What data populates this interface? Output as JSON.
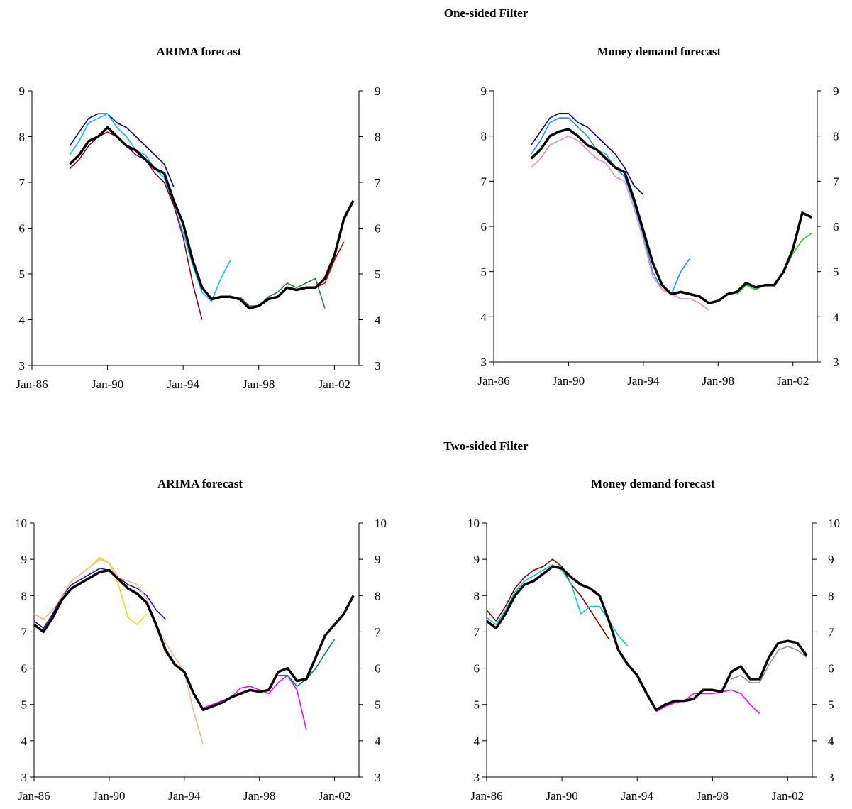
{
  "section_titles": [
    "One-sided Filter",
    "Two-sided Filter"
  ],
  "chart_data": [
    {
      "type": "line",
      "title": "ARIMA forecast",
      "x": [
        1988,
        1988.5,
        1989,
        1989.5,
        1990,
        1990.5,
        1991,
        1991.5,
        1992,
        1992.5,
        1993,
        1993.5,
        1994,
        1994.5,
        1995,
        1995.5,
        1996,
        1996.5,
        1997,
        1997.5,
        1998,
        1998.5,
        1999,
        1999.5,
        2000,
        2000.5,
        2001,
        2001.5,
        2002,
        2002.5,
        2003
      ],
      "xlim": [
        1986,
        2003.3
      ],
      "xticks": [
        {
          "value": 1986,
          "label": "Jan-86"
        },
        {
          "value": 1990,
          "label": "Jan-90"
        },
        {
          "value": 1994,
          "label": "Jan-94"
        },
        {
          "value": 1998,
          "label": "Jan-98"
        },
        {
          "value": 2002,
          "label": "Jan-02"
        }
      ],
      "ylim": [
        3,
        9
      ],
      "yticks": [
        3,
        4,
        5,
        6,
        7,
        8,
        9
      ],
      "series": [
        {
          "color": "#00008b",
          "values": [
            7.8,
            8.1,
            8.4,
            8.5,
            8.5,
            8.3,
            8.2,
            8.0,
            7.8,
            7.6,
            7.4,
            6.9,
            null,
            null,
            null,
            null,
            null,
            null,
            null,
            null,
            null,
            null,
            null,
            null,
            null,
            null,
            null,
            null,
            null,
            null,
            null
          ]
        },
        {
          "color": "#00bfff",
          "values": [
            7.6,
            7.9,
            8.3,
            8.4,
            8.5,
            8.2,
            8.0,
            7.7,
            7.6,
            7.3,
            7.1,
            6.5,
            5.9,
            5.2,
            4.6,
            4.4,
            4.9,
            5.3,
            null,
            null,
            null,
            null,
            null,
            null,
            null,
            null,
            null,
            null,
            null,
            null,
            null
          ]
        },
        {
          "color": "#8b0030",
          "values": [
            7.3,
            7.5,
            7.8,
            8.0,
            8.1,
            8.0,
            7.8,
            7.6,
            7.5,
            7.2,
            7.0,
            6.5,
            5.8,
            4.8,
            4.0,
            null,
            null,
            null,
            null,
            null,
            null,
            null,
            null,
            null,
            null,
            null,
            null,
            null,
            null,
            null,
            null
          ]
        },
        {
          "color": "#2e7d32",
          "values": [
            null,
            null,
            null,
            null,
            null,
            null,
            null,
            null,
            null,
            null,
            null,
            null,
            null,
            null,
            null,
            null,
            null,
            null,
            4.5,
            4.3,
            4.3,
            4.5,
            4.6,
            4.8,
            4.7,
            4.8,
            4.9,
            4.25,
            null,
            null,
            null
          ]
        },
        {
          "color": "#e00000",
          "values": [
            null,
            null,
            null,
            null,
            null,
            null,
            null,
            null,
            null,
            null,
            null,
            null,
            null,
            null,
            null,
            null,
            null,
            null,
            null,
            null,
            null,
            null,
            null,
            null,
            4.65,
            4.7,
            4.7,
            4.8,
            5.3,
            5.7,
            null
          ]
        },
        {
          "color": "#000000",
          "values": [
            7.4,
            7.6,
            7.9,
            8.0,
            8.2,
            8.0,
            7.8,
            7.7,
            7.5,
            7.3,
            7.2,
            6.6,
            6.1,
            5.3,
            4.7,
            4.45,
            4.5,
            4.5,
            4.45,
            4.25,
            4.3,
            4.45,
            4.5,
            4.7,
            4.65,
            4.7,
            4.7,
            4.9,
            5.4,
            6.2,
            6.6
          ]
        }
      ]
    },
    {
      "type": "line",
      "title": "Money demand forecast",
      "x": [
        1988,
        1988.5,
        1989,
        1989.5,
        1990,
        1990.5,
        1991,
        1991.5,
        1992,
        1992.5,
        1993,
        1993.5,
        1994,
        1994.5,
        1995,
        1995.5,
        1996,
        1996.5,
        1997,
        1997.5,
        1998,
        1998.5,
        1999,
        1999.5,
        2000,
        2000.5,
        2001,
        2001.5,
        2002,
        2002.5,
        2003
      ],
      "xlim": [
        1986,
        2003.3
      ],
      "xticks": [
        {
          "value": 1986,
          "label": "Jan-86"
        },
        {
          "value": 1990,
          "label": "Jan-90"
        },
        {
          "value": 1994,
          "label": "Jan-94"
        },
        {
          "value": 1998,
          "label": "Jan-98"
        },
        {
          "value": 2002,
          "label": "Jan-02"
        }
      ],
      "ylim": [
        3,
        9
      ],
      "yticks": [
        3,
        4,
        5,
        6,
        7,
        8,
        9
      ],
      "series": [
        {
          "color": "#00008b",
          "values": [
            7.8,
            8.1,
            8.4,
            8.5,
            8.5,
            8.3,
            8.2,
            8.0,
            7.8,
            7.6,
            7.3,
            6.9,
            6.7,
            null,
            null,
            null,
            null,
            null,
            null,
            null,
            null,
            null,
            null,
            null,
            null,
            null,
            null,
            null,
            null,
            null,
            null
          ]
        },
        {
          "color": "#1e90ff",
          "values": [
            7.6,
            7.9,
            8.3,
            8.4,
            8.4,
            8.2,
            8.0,
            7.7,
            7.6,
            7.3,
            7.1,
            6.5,
            5.8,
            5.0,
            4.6,
            4.5,
            5.0,
            5.3,
            null,
            null,
            null,
            null,
            null,
            null,
            null,
            null,
            null,
            null,
            null,
            null,
            null
          ]
        },
        {
          "color": "#e78fc0",
          "values": [
            7.3,
            7.5,
            7.8,
            7.9,
            8.0,
            7.9,
            7.7,
            7.5,
            7.4,
            7.1,
            7.0,
            6.4,
            5.7,
            4.9,
            4.6,
            4.5,
            4.4,
            4.4,
            4.3,
            4.15,
            null,
            null,
            null,
            null,
            null,
            null,
            null,
            null,
            null,
            null,
            null
          ]
        },
        {
          "color": "#22cc22",
          "values": [
            null,
            null,
            null,
            null,
            null,
            null,
            null,
            null,
            null,
            null,
            null,
            null,
            null,
            null,
            null,
            null,
            null,
            null,
            null,
            null,
            null,
            null,
            4.5,
            4.7,
            4.6,
            4.7,
            4.7,
            5.0,
            5.4,
            5.7,
            5.85
          ]
        },
        {
          "color": "#000000",
          "values": [
            7.5,
            7.7,
            8.0,
            8.1,
            8.15,
            8.0,
            7.8,
            7.7,
            7.5,
            7.3,
            7.2,
            6.6,
            5.9,
            5.2,
            4.7,
            4.5,
            4.55,
            4.5,
            4.45,
            4.3,
            4.35,
            4.5,
            4.55,
            4.75,
            4.65,
            4.7,
            4.7,
            5.0,
            5.5,
            6.3,
            6.2
          ]
        }
      ]
    },
    {
      "type": "line",
      "title": "ARIMA forecast",
      "x": [
        1986,
        1986.5,
        1987,
        1987.5,
        1988,
        1988.5,
        1989,
        1989.5,
        1990,
        1990.5,
        1991,
        1991.5,
        1992,
        1992.5,
        1993,
        1993.5,
        1994,
        1994.5,
        1995,
        1995.5,
        1996,
        1996.5,
        1997,
        1997.5,
        1998,
        1998.5,
        1999,
        1999.5,
        2000,
        2000.5,
        2001,
        2001.5,
        2002,
        2002.5,
        2003
      ],
      "xlim": [
        1986,
        2003.3
      ],
      "xticks": [
        {
          "value": 1986,
          "label": "Jan-86"
        },
        {
          "value": 1990,
          "label": "Jan-90"
        },
        {
          "value": 1994,
          "label": "Jan-94"
        },
        {
          "value": 1998,
          "label": "Jan-98"
        },
        {
          "value": 2002,
          "label": "Jan-02"
        }
      ],
      "ylim": [
        3,
        10
      ],
      "yticks": [
        3,
        4,
        5,
        6,
        7,
        8,
        9,
        10
      ],
      "series": [
        {
          "color": "#ffd700",
          "values": [
            7.3,
            7.1,
            7.5,
            8.0,
            8.4,
            8.6,
            8.8,
            9.05,
            8.9,
            8.3,
            7.4,
            7.2,
            7.5,
            null,
            null,
            null,
            null,
            null,
            null,
            null,
            null,
            null,
            null,
            null,
            null,
            null,
            null,
            null,
            null,
            null,
            null,
            null,
            null,
            null,
            null
          ]
        },
        {
          "color": "#1a1aa0",
          "values": [
            7.3,
            7.1,
            7.5,
            8.0,
            8.3,
            8.45,
            8.6,
            8.75,
            8.7,
            8.5,
            8.3,
            8.2,
            8.0,
            7.6,
            7.35,
            null,
            null,
            null,
            null,
            null,
            null,
            null,
            null,
            null,
            null,
            null,
            null,
            null,
            null,
            null,
            null,
            null,
            null,
            null,
            null
          ]
        },
        {
          "color": "#f4b890",
          "values": [
            7.5,
            7.35,
            7.6,
            8.0,
            8.4,
            8.6,
            8.8,
            9.0,
            8.9,
            8.5,
            8.4,
            8.3,
            7.9,
            7.2,
            6.7,
            6.3,
            5.9,
            4.8,
            3.9,
            null,
            null,
            null,
            null,
            null,
            null,
            null,
            null,
            null,
            null,
            null,
            null,
            null,
            null,
            null,
            null
          ]
        },
        {
          "color": "#ff00ff",
          "values": [
            null,
            null,
            null,
            null,
            null,
            null,
            null,
            null,
            null,
            null,
            null,
            null,
            null,
            null,
            null,
            null,
            null,
            null,
            4.9,
            5.0,
            5.1,
            5.2,
            5.45,
            5.5,
            5.4,
            5.3,
            5.6,
            5.8,
            5.4,
            4.3,
            null,
            null,
            null,
            null,
            null
          ]
        },
        {
          "color": "#008080",
          "values": [
            null,
            null,
            null,
            null,
            null,
            null,
            null,
            null,
            null,
            null,
            null,
            null,
            null,
            null,
            null,
            null,
            null,
            null,
            null,
            null,
            null,
            null,
            null,
            null,
            null,
            null,
            5.8,
            5.8,
            5.5,
            5.7,
            6.0,
            6.4,
            6.8,
            null,
            null
          ]
        },
        {
          "color": "#000000",
          "values": [
            7.2,
            7.0,
            7.4,
            7.9,
            8.2,
            8.35,
            8.5,
            8.65,
            8.7,
            8.45,
            8.2,
            8.05,
            7.8,
            7.2,
            6.5,
            6.1,
            5.9,
            5.3,
            4.85,
            4.95,
            5.05,
            5.2,
            5.3,
            5.4,
            5.35,
            5.4,
            5.9,
            6.0,
            5.65,
            5.7,
            6.3,
            6.9,
            7.2,
            7.5,
            8.0
          ]
        }
      ]
    },
    {
      "type": "line",
      "title": "Money demand forecast",
      "x": [
        1986,
        1986.5,
        1987,
        1987.5,
        1988,
        1988.5,
        1989,
        1989.5,
        1990,
        1990.5,
        1991,
        1991.5,
        1992,
        1992.5,
        1993,
        1993.5,
        1994,
        1994.5,
        1995,
        1995.5,
        1996,
        1996.5,
        1997,
        1997.5,
        1998,
        1998.5,
        1999,
        1999.5,
        2000,
        2000.5,
        2001,
        2001.5,
        2002,
        2002.5,
        2003
      ],
      "xlim": [
        1986,
        2003.3
      ],
      "xticks": [
        {
          "value": 1986,
          "label": "Jan-86"
        },
        {
          "value": 1990,
          "label": "Jan-90"
        },
        {
          "value": 1994,
          "label": "Jan-94"
        },
        {
          "value": 1998,
          "label": "Jan-98"
        },
        {
          "value": 2002,
          "label": "Jan-02"
        }
      ],
      "ylim": [
        3,
        10
      ],
      "yticks": [
        3,
        4,
        5,
        6,
        7,
        8,
        9,
        10
      ],
      "series": [
        {
          "color": "#8b0000",
          "values": [
            7.6,
            7.3,
            7.7,
            8.2,
            8.5,
            8.7,
            8.8,
            9.0,
            8.8,
            8.3,
            8.0,
            7.6,
            7.2,
            6.8,
            null,
            null,
            null,
            null,
            null,
            null,
            null,
            null,
            null,
            null,
            null,
            null,
            null,
            null,
            null,
            null,
            null,
            null,
            null,
            null,
            null
          ]
        },
        {
          "color": "#00ced1",
          "values": [
            7.4,
            7.2,
            7.6,
            8.1,
            8.4,
            8.55,
            8.7,
            8.85,
            8.7,
            8.3,
            7.5,
            7.7,
            7.7,
            7.3,
            6.9,
            6.6,
            null,
            null,
            null,
            null,
            null,
            null,
            null,
            null,
            null,
            null,
            null,
            null,
            null,
            null,
            null,
            null,
            null,
            null,
            null
          ]
        },
        {
          "color": "#ff00ff",
          "values": [
            null,
            null,
            null,
            null,
            null,
            null,
            null,
            null,
            null,
            null,
            null,
            null,
            null,
            null,
            null,
            null,
            null,
            null,
            4.8,
            4.95,
            5.05,
            5.1,
            5.3,
            5.3,
            5.3,
            5.35,
            5.4,
            5.3,
            5.0,
            4.75,
            null,
            null,
            null,
            null,
            null
          ]
        },
        {
          "color": "#909090",
          "values": [
            null,
            null,
            null,
            null,
            null,
            null,
            null,
            null,
            null,
            null,
            null,
            null,
            null,
            null,
            null,
            null,
            null,
            null,
            null,
            null,
            null,
            null,
            null,
            null,
            null,
            null,
            5.7,
            5.8,
            5.6,
            5.6,
            6.1,
            6.5,
            6.6,
            6.5,
            6.3
          ]
        },
        {
          "color": "#000000",
          "values": [
            7.3,
            7.1,
            7.5,
            8.0,
            8.3,
            8.4,
            8.6,
            8.8,
            8.75,
            8.5,
            8.3,
            8.2,
            8.0,
            7.3,
            6.5,
            6.1,
            5.8,
            5.3,
            4.85,
            5.0,
            5.1,
            5.1,
            5.15,
            5.4,
            5.4,
            5.35,
            5.9,
            6.05,
            5.7,
            5.7,
            6.3,
            6.7,
            6.75,
            6.7,
            6.35
          ]
        }
      ]
    }
  ]
}
